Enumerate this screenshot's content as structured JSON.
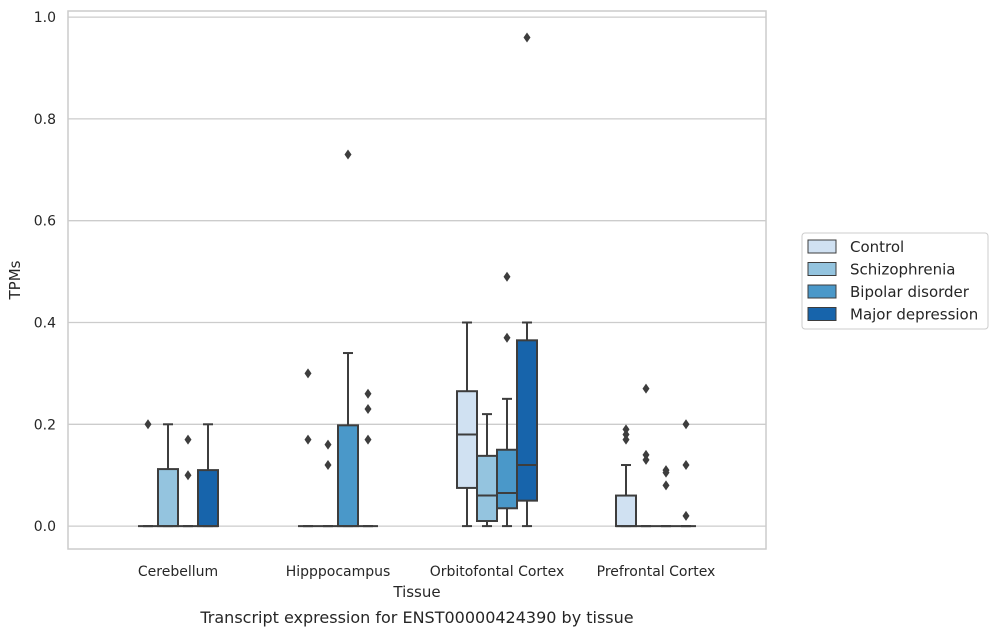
{
  "caption": "Transcript expression for ENST00000424390 by tissue",
  "chart_data": {
    "type": "box",
    "xlabel": "Tissue",
    "ylabel": "TPMs",
    "ylim": [
      -0.045,
      1.012
    ],
    "yticks": [
      "0.0",
      "0.2",
      "0.4",
      "0.6",
      "0.8",
      "1.0"
    ],
    "grid": "horizontal",
    "legend_position": "right",
    "categories": [
      "Cerebellum",
      "Hipppocampus",
      "Orbitofontal Cortex",
      "Prefrontal Cortex"
    ],
    "series": [
      {
        "name": "Control",
        "color": "#d0e1f2",
        "boxes": [
          {
            "q1": 0,
            "median": 0,
            "q3": 0,
            "whisker_low": 0,
            "whisker_high": 0,
            "outliers": [
              0.2
            ]
          },
          {
            "q1": 0,
            "median": 0,
            "q3": 0,
            "whisker_low": 0,
            "whisker_high": 0,
            "outliers": [
              0.3,
              0.17
            ]
          },
          {
            "q1": 0.075,
            "median": 0.18,
            "q3": 0.265,
            "whisker_low": 0,
            "whisker_high": 0.4,
            "outliers": []
          },
          {
            "q1": 0,
            "median": 0,
            "q3": 0.06,
            "whisker_low": 0,
            "whisker_high": 0.12,
            "outliers": [
              0.19,
              0.18,
              0.17
            ]
          }
        ]
      },
      {
        "name": "Schizophrenia",
        "color": "#94c4df",
        "boxes": [
          {
            "q1": 0,
            "median": 0,
            "q3": 0.112,
            "whisker_low": 0,
            "whisker_high": 0.2,
            "outliers": []
          },
          {
            "q1": 0,
            "median": 0,
            "q3": 0,
            "whisker_low": 0,
            "whisker_high": 0,
            "outliers": [
              0.16,
              0.12
            ]
          },
          {
            "q1": 0.01,
            "median": 0.06,
            "q3": 0.138,
            "whisker_low": 0,
            "whisker_high": 0.22,
            "outliers": []
          },
          {
            "q1": 0,
            "median": 0,
            "q3": 0,
            "whisker_low": 0,
            "whisker_high": 0,
            "outliers": [
              0.27,
              0.14,
              0.13
            ]
          }
        ]
      },
      {
        "name": "Bipolar disorder",
        "color": "#4a98c9",
        "boxes": [
          {
            "q1": 0,
            "median": 0,
            "q3": 0,
            "whisker_low": 0,
            "whisker_high": 0,
            "outliers": [
              0.17,
              0.1
            ]
          },
          {
            "q1": 0,
            "median": 0,
            "q3": 0.198,
            "whisker_low": 0,
            "whisker_high": 0.34,
            "outliers": [
              0.73
            ]
          },
          {
            "q1": 0.035,
            "median": 0.065,
            "q3": 0.15,
            "whisker_low": 0,
            "whisker_high": 0.25,
            "outliers": [
              0.49,
              0.37
            ]
          },
          {
            "q1": 0,
            "median": 0,
            "q3": 0,
            "whisker_low": 0,
            "whisker_high": 0,
            "outliers": [
              0.11,
              0.105,
              0.08
            ]
          }
        ]
      },
      {
        "name": "Major depression",
        "color": "#1764ab",
        "boxes": [
          {
            "q1": 0,
            "median": 0,
            "q3": 0.11,
            "whisker_low": 0,
            "whisker_high": 0.2,
            "outliers": []
          },
          {
            "q1": 0,
            "median": 0,
            "q3": 0,
            "whisker_low": 0,
            "whisker_high": 0,
            "outliers": [
              0.26,
              0.23,
              0.17
            ]
          },
          {
            "q1": 0.05,
            "median": 0.12,
            "q3": 0.365,
            "whisker_low": 0,
            "whisker_high": 0.4,
            "outliers": [
              0.96
            ]
          },
          {
            "q1": 0,
            "median": 0,
            "q3": 0,
            "whisker_low": 0,
            "whisker_high": 0,
            "outliers": [
              0.2,
              0.12,
              0.02
            ]
          }
        ]
      }
    ]
  }
}
